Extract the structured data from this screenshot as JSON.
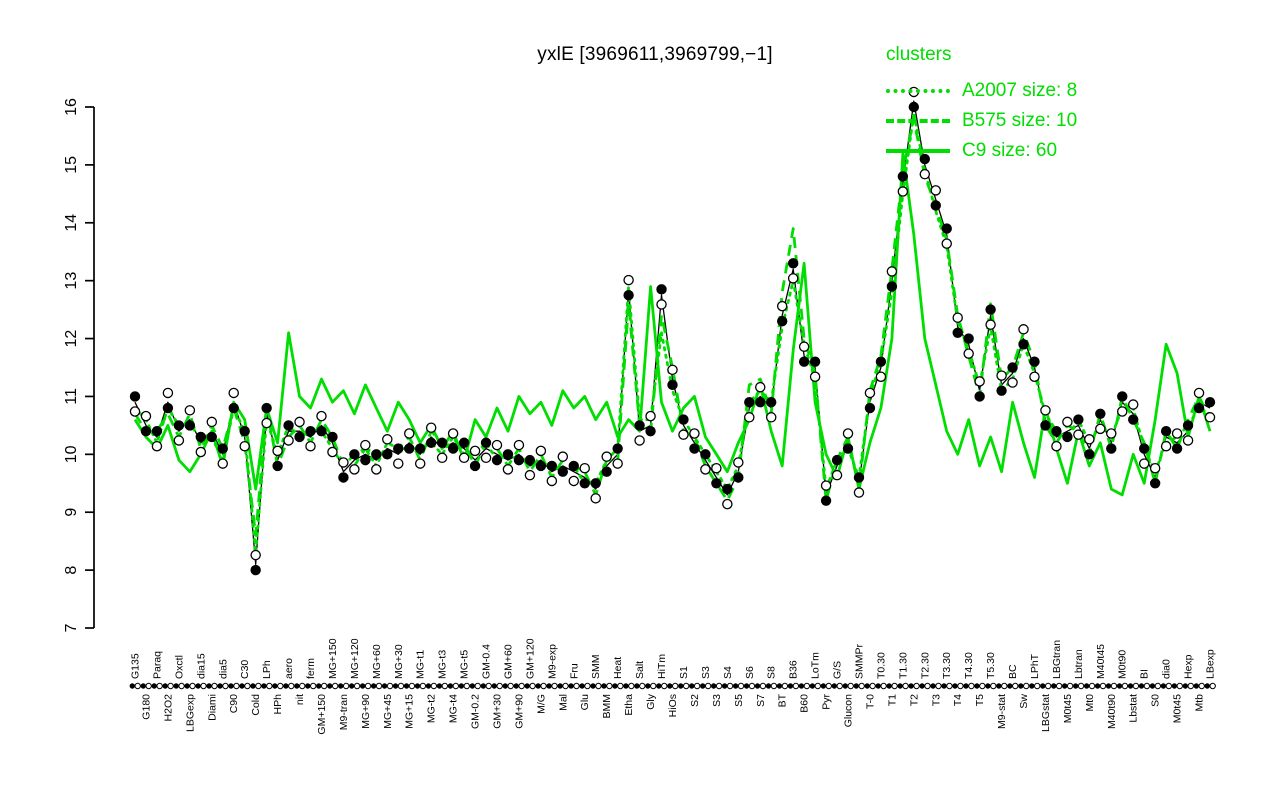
{
  "title": "yxlE [3969611,3969799,−1]",
  "colors": {
    "cluster_green": "#00dd00",
    "series_black": "#000000",
    "background": "#ffffff"
  },
  "legend": {
    "heading": "clusters",
    "entries": [
      {
        "label": "A2007 size: 8",
        "style": "dotted"
      },
      {
        "label": "B575 size: 10",
        "style": "dashed"
      },
      {
        "label": "C9 size: 60",
        "style": "solid"
      }
    ]
  },
  "chart_data": {
    "type": "line",
    "title": "yxlE [3969611,3969799,−1]",
    "xlabel": "",
    "ylabel": "",
    "ylim": [
      7,
      16
    ],
    "yticks": [
      7,
      8,
      9,
      10,
      11,
      12,
      13,
      14,
      15,
      16
    ],
    "grid": false,
    "legend_position": "top-right",
    "marker_jitter": [
      0.1,
      0.16
    ],
    "categories": [
      "G135",
      "G180",
      "Paraq",
      "H2O2",
      "Oxctl",
      "LBGexp",
      "dia15",
      "Diami",
      "dia5",
      "C90",
      "C30",
      "Cold",
      "LPh",
      "HPh",
      "aero",
      "nit",
      "ferm",
      "GM+150",
      "MG+150",
      "M9-tran",
      "MG+120",
      "MG+90",
      "MG+60",
      "MG+45",
      "MG+30",
      "MG+15",
      "MG-t1",
      "MG-t2",
      "MG-t3",
      "MG-t4",
      "MG-t5",
      "GM-0.2",
      "GM-0.4",
      "GM+30",
      "GM+60",
      "GM+90",
      "GM+120",
      "M/G",
      "M9-exp",
      "Mal",
      "Fru",
      "Glu",
      "SMM",
      "BMM",
      "Heat",
      "Etha",
      "Salt",
      "Gly",
      "HiTm",
      "HiOs",
      "S1",
      "S2",
      "S3",
      "S3",
      "S4",
      "S5",
      "S6",
      "S7",
      "S8",
      "BT",
      "B36",
      "B60",
      "LoTm",
      "Pyr",
      "G/S",
      "Glucon",
      "SMMPr",
      "T-0",
      "T0.30",
      "T1",
      "T1.30",
      "T2",
      "T2.30",
      "T3",
      "T3.30",
      "T4",
      "T4.30",
      "T5",
      "T5.30",
      "M9-stat",
      "BC",
      "Sw",
      "LPhT",
      "LBGstat",
      "LBGtran",
      "M0t45",
      "Lbtran",
      "Mt0",
      "M40t45",
      "M40t90",
      "M0t90",
      "Lbstat",
      "BI",
      "S0",
      "dia0",
      "M0t45",
      "Hexp",
      "Mtb",
      "LBexp"
    ],
    "series": [
      {
        "name": "yxlE",
        "color": "black",
        "style": "line-markers",
        "values": [
          10.9,
          10.5,
          10.3,
          10.9,
          10.4,
          10.6,
          10.2,
          10.4,
          10.0,
          10.9,
          10.3,
          8.1,
          10.7,
          9.9,
          10.4,
          10.4,
          10.3,
          10.5,
          10.2,
          9.7,
          9.9,
          10.0,
          9.9,
          10.1,
          10.0,
          10.2,
          10.0,
          10.3,
          10.1,
          10.2,
          10.1,
          9.9,
          10.1,
          10.0,
          9.9,
          10.0,
          9.8,
          9.9,
          9.7,
          9.8,
          9.7,
          9.6,
          9.4,
          9.8,
          10.0,
          12.85,
          10.4,
          10.5,
          12.75,
          11.3,
          10.5,
          10.2,
          9.9,
          9.6,
          9.3,
          9.7,
          10.8,
          11.0,
          10.8,
          12.4,
          13.2,
          11.7,
          11.5,
          9.3,
          9.8,
          10.2,
          9.5,
          10.9,
          11.5,
          13.0,
          14.7,
          16.1,
          15.0,
          14.4,
          13.8,
          12.2,
          11.9,
          11.1,
          12.4,
          11.2,
          11.4,
          12.0,
          11.5,
          10.6,
          10.3,
          10.4,
          10.5,
          10.1,
          10.6,
          10.2,
          10.9,
          10.7,
          10.0,
          9.6,
          10.3,
          10.2,
          10.4,
          10.9,
          10.8
        ]
      },
      {
        "name": "A2007 size: 8",
        "color": "green",
        "style": "dotted",
        "values": [
          10.8,
          10.6,
          10.2,
          10.8,
          10.5,
          10.5,
          10.3,
          10.3,
          9.9,
          10.8,
          10.4,
          8.3,
          10.6,
          10.0,
          10.5,
          10.3,
          10.4,
          10.4,
          10.1,
          9.8,
          10.0,
          10.1,
          9.8,
          10.2,
          10.1,
          10.1,
          10.1,
          10.2,
          10.0,
          10.3,
          10.0,
          10.0,
          10.2,
          9.9,
          10.0,
          9.9,
          9.9,
          9.8,
          9.8,
          9.7,
          9.8,
          9.5,
          9.5,
          9.9,
          10.1,
          12.9,
          10.6,
          10.6,
          12.1,
          11.1,
          10.6,
          10.3,
          10.0,
          9.7,
          9.4,
          9.8,
          10.9,
          11.1,
          10.9,
          12.2,
          13.0,
          11.9,
          11.3,
          9.4,
          9.9,
          10.1,
          9.6,
          11.0,
          11.6,
          12.8,
          14.5,
          15.9,
          14.9,
          14.2,
          13.6,
          12.3,
          11.8,
          11.2,
          12.2,
          11.1,
          11.3,
          11.9,
          11.4,
          10.7,
          10.4,
          10.3,
          10.6,
          10.2,
          10.5,
          10.3,
          10.8,
          10.8,
          10.1,
          9.7,
          10.2,
          10.3,
          10.5,
          10.8,
          10.7
        ]
      },
      {
        "name": "B575 size: 10",
        "color": "green",
        "style": "dashed",
        "values": [
          10.7,
          10.4,
          10.4,
          10.7,
          10.3,
          10.7,
          10.1,
          10.5,
          10.1,
          10.8,
          10.2,
          8.6,
          10.8,
          9.8,
          10.3,
          10.5,
          10.2,
          10.6,
          10.3,
          9.8,
          9.8,
          10.1,
          10.0,
          10.0,
          10.1,
          10.3,
          9.9,
          10.4,
          10.2,
          10.1,
          10.2,
          9.8,
          10.2,
          10.1,
          9.8,
          10.1,
          9.7,
          10.0,
          9.6,
          9.9,
          9.8,
          9.7,
          9.3,
          9.9,
          9.9,
          12.6,
          10.5,
          10.4,
          12.4,
          11.5,
          10.4,
          10.3,
          9.8,
          9.5,
          9.2,
          9.6,
          11.2,
          11.3,
          10.7,
          12.8,
          13.9,
          12.0,
          11.4,
          9.2,
          9.9,
          10.3,
          9.4,
          11.1,
          11.7,
          13.2,
          14.9,
          15.8,
          14.8,
          14.3,
          13.7,
          12.4,
          11.7,
          11.0,
          12.6,
          11.3,
          11.5,
          12.1,
          11.6,
          10.5,
          10.2,
          10.5,
          10.4,
          10.0,
          10.7,
          10.1,
          11.0,
          10.6,
          10.2,
          9.5,
          10.4,
          10.1,
          10.6,
          11.0,
          10.6
        ]
      },
      {
        "name": "C9 size: 60",
        "color": "green",
        "style": "solid",
        "values": [
          10.6,
          10.3,
          10.1,
          10.5,
          9.9,
          9.7,
          10.0,
          10.4,
          9.8,
          10.9,
          10.6,
          9.4,
          10.8,
          10.2,
          12.1,
          11.0,
          10.8,
          11.3,
          10.9,
          11.1,
          10.7,
          11.2,
          10.8,
          10.4,
          10.9,
          10.6,
          10.2,
          10.5,
          10.1,
          10.4,
          9.9,
          10.6,
          10.3,
          10.8,
          10.4,
          11.0,
          10.7,
          10.9,
          10.5,
          11.1,
          10.8,
          11.0,
          10.6,
          10.9,
          10.3,
          10.6,
          10.4,
          12.9,
          10.9,
          10.4,
          10.8,
          11.0,
          10.3,
          10.0,
          9.7,
          10.2,
          10.6,
          11.2,
          10.4,
          9.8,
          11.8,
          13.3,
          10.9,
          10.0,
          9.6,
          10.3,
          9.4,
          10.2,
          10.8,
          12.0,
          15.2,
          13.8,
          12.0,
          11.2,
          10.4,
          10.0,
          10.6,
          9.8,
          10.3,
          9.7,
          10.9,
          10.2,
          9.6,
          10.8,
          10.1,
          9.5,
          10.4,
          9.8,
          10.2,
          9.4,
          9.3,
          10.0,
          9.5,
          10.6,
          11.9,
          11.4,
          10.3,
          11.0,
          10.4
        ]
      }
    ],
    "axis_replicate_dots": "filled+open per condition"
  }
}
